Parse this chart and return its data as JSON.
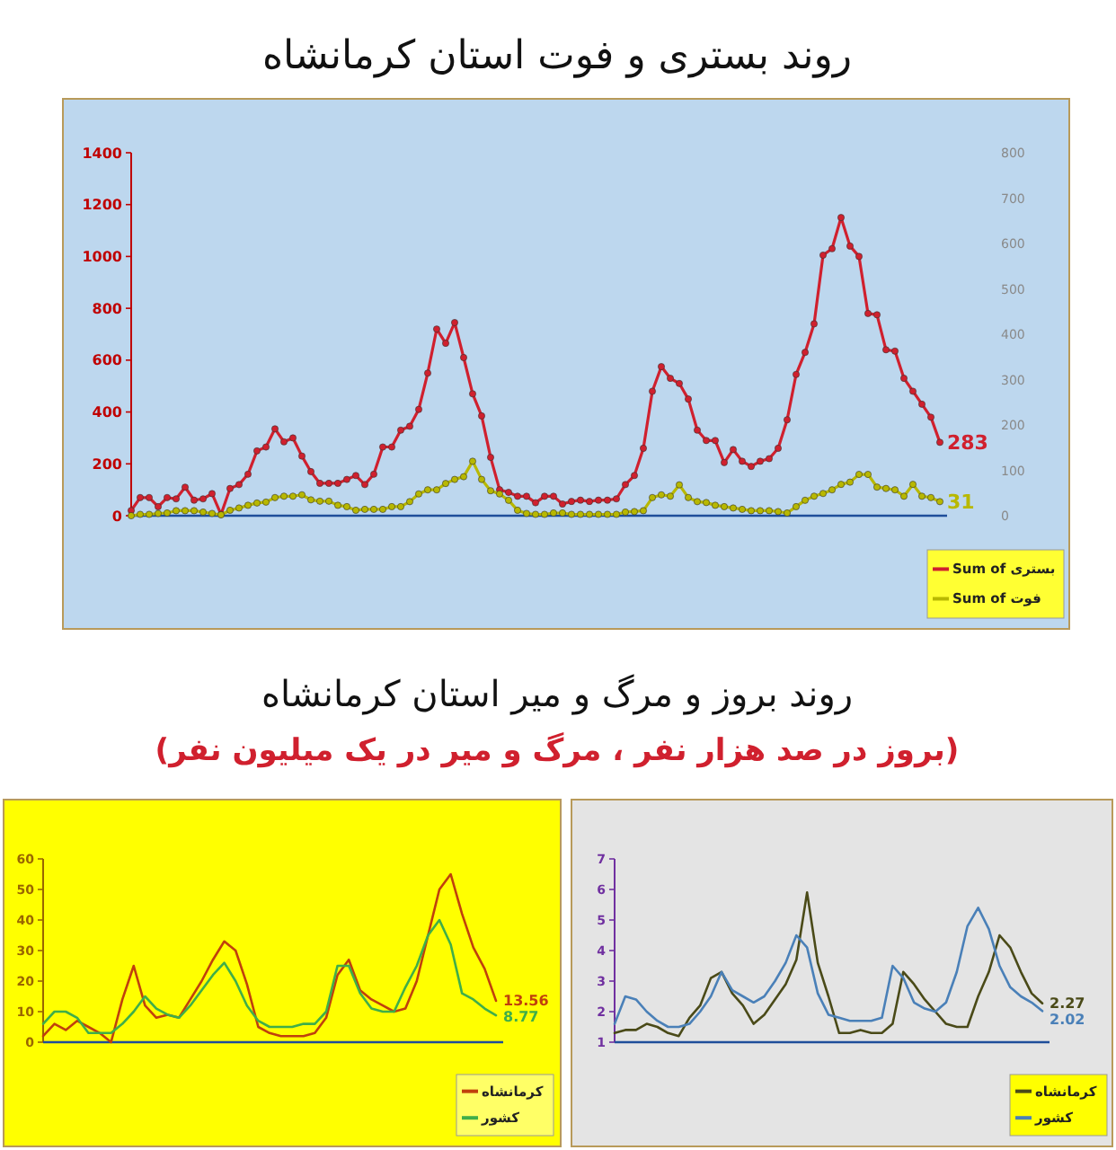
{
  "chart_data": [
    {
      "type": "line",
      "title": "روند بستری و فوت استان کرمانشاه",
      "marker": "circle",
      "legend": "bottom right",
      "ylim": [
        0,
        1400
      ],
      "yticks": [
        0,
        200,
        400,
        600,
        800,
        1000,
        1200,
        1400
      ],
      "y2lim": [
        0,
        800
      ],
      "y2ticks": [
        0,
        100,
        200,
        300,
        400,
        500,
        600,
        700,
        800
      ],
      "categories": [
        null,
        null,
        null,
        null,
        null,
        null,
        null,
        null,
        null,
        null,
        null,
        null,
        null,
        null,
        null,
        null,
        null,
        null,
        null,
        null,
        null,
        null,
        null,
        null,
        null,
        null,
        null,
        null,
        null,
        null,
        null,
        null,
        null,
        null,
        null,
        null,
        null,
        null,
        null,
        null,
        null,
        null,
        null,
        null,
        null,
        null,
        null,
        null,
        null,
        null,
        null,
        null,
        null,
        null,
        null,
        null,
        null,
        null,
        null,
        null,
        null,
        null,
        null,
        null,
        null,
        null,
        null,
        null,
        null,
        null,
        null,
        null,
        null,
        null,
        null,
        null,
        null,
        null,
        null,
        null,
        null,
        null,
        null,
        null,
        null,
        null,
        null,
        null,
        null,
        null,
        null
      ],
      "series": [
        {
          "name": "Sum of بستری",
          "color": "#d0202e",
          "values": [
            20,
            70,
            70,
            35,
            70,
            65,
            110,
            60,
            65,
            85,
            5,
            105,
            120,
            160,
            250,
            265,
            335,
            285,
            300,
            230,
            170,
            125,
            125,
            125,
            140,
            155,
            120,
            160,
            265,
            265,
            330,
            345,
            410,
            550,
            720,
            665,
            745,
            610,
            470,
            385,
            225,
            100,
            90,
            75,
            75,
            50,
            75,
            75,
            45,
            55,
            60,
            55,
            60,
            60,
            65,
            120,
            155,
            260,
            480,
            575,
            530,
            510,
            450,
            330,
            290,
            290,
            205,
            255,
            210,
            190,
            210,
            220,
            260,
            370,
            545,
            630,
            740,
            1005,
            1030,
            1150,
            1040,
            1000,
            780,
            775,
            640,
            635,
            530,
            480,
            430,
            380,
            283
          ],
          "value_labels": [
            null,
            null,
            null,
            null,
            null,
            null,
            null,
            null,
            null,
            null,
            null,
            null,
            null,
            null,
            null,
            null,
            null,
            null,
            null,
            null,
            null,
            null,
            null,
            null,
            null,
            null,
            null,
            null,
            null,
            null,
            null,
            null,
            null,
            null,
            null,
            null,
            null,
            null,
            null,
            null,
            null,
            null,
            null,
            null,
            null,
            null,
            null,
            null,
            null,
            null,
            null,
            null,
            null,
            null,
            null,
            null,
            null,
            null,
            null,
            null,
            null,
            null,
            null,
            null,
            null,
            null,
            null,
            null,
            null,
            null,
            null,
            null,
            null,
            null,
            null,
            null,
            null,
            null,
            null,
            null,
            null,
            null,
            null,
            null,
            null,
            null,
            null,
            null,
            null,
            null,
            "283"
          ]
        },
        {
          "name": "Sum of فوت",
          "color": "#b8b800",
          "axis": "y2",
          "values": [
            0,
            3,
            3,
            5,
            6,
            11,
            11,
            11,
            8,
            5,
            2,
            12,
            17,
            23,
            28,
            30,
            40,
            43,
            43,
            46,
            35,
            32,
            32,
            23,
            20,
            12,
            14,
            14,
            14,
            20,
            20,
            31,
            48,
            57,
            57,
            71,
            80,
            86,
            120,
            80,
            55,
            48,
            34,
            12,
            5,
            3,
            3,
            6,
            6,
            3,
            3,
            3,
            3,
            3,
            3,
            8,
            9,
            11,
            40,
            46,
            43,
            68,
            40,
            31,
            29,
            23,
            20,
            17,
            14,
            11,
            11,
            11,
            9,
            6,
            20,
            34,
            43,
            49,
            57,
            69,
            74,
            91,
            91,
            63,
            60,
            57,
            43,
            69,
            43,
            40,
            31
          ],
          "value_labels": [
            null,
            null,
            null,
            null,
            null,
            null,
            null,
            null,
            null,
            null,
            null,
            null,
            null,
            null,
            null,
            null,
            null,
            null,
            null,
            null,
            null,
            null,
            null,
            null,
            null,
            null,
            null,
            null,
            null,
            null,
            null,
            null,
            null,
            null,
            null,
            null,
            null,
            null,
            null,
            null,
            null,
            null,
            null,
            null,
            null,
            null,
            null,
            null,
            null,
            null,
            null,
            null,
            null,
            null,
            null,
            null,
            null,
            null,
            null,
            null,
            null,
            null,
            null,
            null,
            null,
            null,
            null,
            null,
            null,
            null,
            null,
            null,
            null,
            null,
            null,
            null,
            null,
            null,
            null,
            null,
            null,
            null,
            null,
            null,
            null,
            null,
            null,
            null,
            null,
            null,
            "31"
          ]
        }
      ]
    },
    {
      "type": "line",
      "title": "روند بروز و مرگ و میر استان کرمانشاه",
      "subtitle": "(بروز در صد هزار نفر ، مرگ و میر در یک میلیون نفر)",
      "legend": "bottom right",
      "ylim": [
        0,
        60
      ],
      "yticks": [
        0,
        10,
        20,
        30,
        40,
        50,
        60
      ],
      "categories": [
        null,
        null,
        null,
        null,
        null,
        null,
        null,
        null,
        null,
        null,
        null,
        null,
        null,
        null,
        null,
        null,
        null,
        null,
        null,
        null,
        null,
        null,
        null,
        null,
        null,
        null,
        null,
        null,
        null,
        null,
        null,
        null,
        null,
        null,
        null,
        null,
        null,
        null,
        null,
        null,
        null
      ],
      "series": [
        {
          "name": "کرمانشاه",
          "color": "#c0400c",
          "values": [
            2,
            6,
            4,
            7,
            5,
            3,
            0,
            14,
            25,
            12,
            8,
            9,
            8,
            14,
            20,
            27,
            33,
            30,
            19,
            5,
            3,
            2,
            2,
            2,
            3,
            8,
            22,
            27,
            17,
            14,
            12,
            10,
            11,
            20,
            35,
            50,
            55,
            42,
            31,
            24,
            13.56
          ],
          "value_labels": [
            null,
            null,
            null,
            null,
            null,
            null,
            null,
            null,
            null,
            null,
            null,
            null,
            null,
            null,
            null,
            null,
            null,
            null,
            null,
            null,
            null,
            null,
            null,
            null,
            null,
            null,
            null,
            null,
            null,
            null,
            null,
            null,
            null,
            null,
            null,
            null,
            null,
            null,
            null,
            null,
            "13.56"
          ]
        },
        {
          "name": "کشور",
          "color": "#3fae49",
          "values": [
            6,
            10,
            10,
            8,
            3,
            3,
            3,
            6,
            10,
            15,
            11,
            9,
            8,
            12,
            17,
            22,
            26,
            20,
            12,
            7,
            5,
            5,
            5,
            6,
            6,
            10,
            25,
            25,
            16,
            11,
            10,
            10,
            18,
            25,
            35,
            40,
            32,
            16,
            14,
            11,
            8.77
          ],
          "value_labels": [
            null,
            null,
            null,
            null,
            null,
            null,
            null,
            null,
            null,
            null,
            null,
            null,
            null,
            null,
            null,
            null,
            null,
            null,
            null,
            null,
            null,
            null,
            null,
            null,
            null,
            null,
            null,
            null,
            null,
            null,
            null,
            null,
            null,
            null,
            null,
            null,
            null,
            null,
            null,
            null,
            "8.77"
          ]
        }
      ]
    },
    {
      "type": "line",
      "legend": "bottom right",
      "ylim": [
        1,
        7
      ],
      "yticks": [
        1,
        2,
        3,
        4,
        5,
        6,
        7
      ],
      "categories": [
        null,
        null,
        null,
        null,
        null,
        null,
        null,
        null,
        null,
        null,
        null,
        null,
        null,
        null,
        null,
        null,
        null,
        null,
        null,
        null,
        null,
        null,
        null,
        null,
        null,
        null,
        null,
        null,
        null,
        null,
        null,
        null,
        null,
        null,
        null,
        null,
        null,
        null,
        null,
        null,
        null
      ],
      "series": [
        {
          "name": "کرمانشاه",
          "color": "#4a4a18",
          "values": [
            1.3,
            1.4,
            1.4,
            1.6,
            1.5,
            1.3,
            1.2,
            1.8,
            2.2,
            3.1,
            3.3,
            2.6,
            2.2,
            1.6,
            1.9,
            2.4,
            2.9,
            3.7,
            5.9,
            3.6,
            2.5,
            1.3,
            1.3,
            1.4,
            1.3,
            1.3,
            1.6,
            3.3,
            2.9,
            2.4,
            2.0,
            1.6,
            1.5,
            1.5,
            2.5,
            3.3,
            4.5,
            4.1,
            3.3,
            2.6,
            2.27
          ],
          "value_labels": [
            null,
            null,
            null,
            null,
            null,
            null,
            null,
            null,
            null,
            null,
            null,
            null,
            null,
            null,
            null,
            null,
            null,
            null,
            null,
            null,
            null,
            null,
            null,
            null,
            null,
            null,
            null,
            null,
            null,
            null,
            null,
            null,
            null,
            null,
            null,
            null,
            null,
            null,
            null,
            null,
            "2.27"
          ]
        },
        {
          "name": "کشور",
          "color": "#4a80b8",
          "values": [
            1.6,
            2.5,
            2.4,
            2.0,
            1.7,
            1.5,
            1.5,
            1.6,
            2.0,
            2.5,
            3.3,
            2.7,
            2.5,
            2.3,
            2.5,
            3.0,
            3.6,
            4.5,
            4.1,
            2.6,
            1.9,
            1.8,
            1.7,
            1.7,
            1.7,
            1.8,
            3.5,
            3.1,
            2.3,
            2.1,
            2.0,
            2.3,
            3.3,
            4.8,
            5.4,
            4.7,
            3.5,
            2.8,
            2.5,
            2.3,
            2.02
          ],
          "value_labels": [
            null,
            null,
            null,
            null,
            null,
            null,
            null,
            null,
            null,
            null,
            null,
            null,
            null,
            null,
            null,
            null,
            null,
            null,
            null,
            null,
            null,
            null,
            null,
            null,
            null,
            null,
            null,
            null,
            null,
            null,
            null,
            null,
            null,
            null,
            null,
            null,
            null,
            null,
            null,
            null,
            "2.02"
          ]
        }
      ]
    }
  ]
}
